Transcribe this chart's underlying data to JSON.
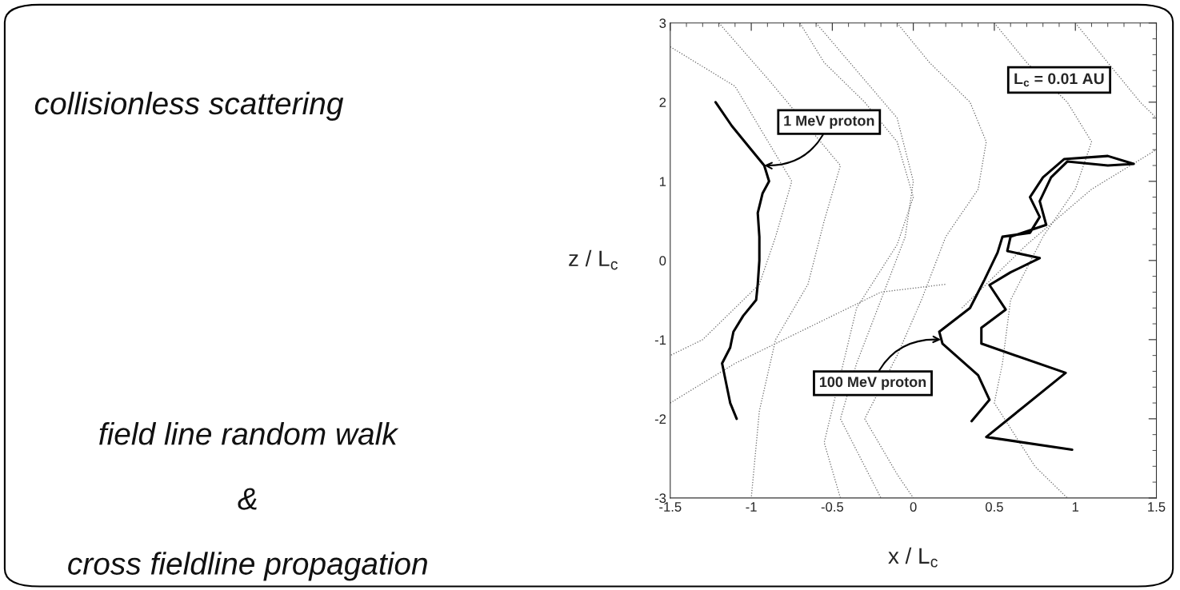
{
  "chart_data": {
    "type": "line",
    "xlabel": "x / L$_{c}$",
    "ylabel": "z / L$_{c}$",
    "xlim": [
      -1.5,
      1.5
    ],
    "ylim": [
      -3,
      3
    ],
    "xticks": [
      -1.5,
      -1,
      -0.5,
      0,
      0.5,
      1,
      1.5
    ],
    "yticks": [
      -3,
      -2,
      -1,
      0,
      1,
      2,
      3
    ],
    "grid": false,
    "legend": false,
    "series": [
      {
        "color": "#666666",
        "line_style": "dotted",
        "x": [
          -1.5,
          -1.1,
          -0.8,
          -0.75,
          -0.85,
          -0.95,
          -1.3,
          -1.5
        ],
        "values": [
          2.7,
          2.2,
          null,
          1.0,
          0.3,
          -0.3,
          -1.0,
          -1.2
        ]
      },
      {
        "color": "#666666",
        "line_style": "dotted",
        "x": [
          -1.2,
          -0.9,
          -0.6,
          -0.45,
          -0.55,
          -0.65,
          -0.85,
          -0.95,
          -1.0
        ],
        "values": [
          3,
          2.3,
          null,
          1.2,
          0.5,
          -0.3,
          -1.0,
          -1.9,
          -3
        ]
      },
      {
        "color": "#666666",
        "line_style": "dotted",
        "x": [
          -0.7,
          -0.55,
          -0.3,
          -0.1,
          0.0,
          -0.1,
          -0.35,
          -0.5,
          -0.55,
          -0.45
        ],
        "values": [
          3,
          2.5,
          2.0,
          1.5,
          0.8,
          0.2,
          -0.6,
          null,
          -2.3,
          -3
        ]
      },
      {
        "color": "#666666",
        "line_style": "dotted",
        "x": [
          -0.6,
          -0.35,
          -0.1,
          0.0,
          -0.05,
          -0.2,
          -0.35,
          -0.45,
          -0.3,
          -0.2
        ],
        "values": [
          3,
          2.4,
          1.8,
          1.0,
          0.3,
          -0.5,
          -1.3,
          -2.0,
          -2.6,
          -3
        ]
      },
      {
        "color": "#666666",
        "line_style": "dotted",
        "x": [
          -0.1,
          0.1,
          0.35,
          0.45,
          0.4,
          0.2,
          0.05,
          -0.1,
          -0.3,
          -0.1,
          0.0
        ],
        "values": [
          3,
          2.5,
          2.0,
          1.5,
          0.9,
          0.3,
          -0.5,
          -1.2,
          -2.0,
          -2.7,
          -3
        ]
      },
      {
        "color": "#666666",
        "line_style": "dotted",
        "x": [
          0.5,
          0.7,
          0.95,
          1.1,
          1.0,
          0.8,
          0.6,
          0.55,
          0.5,
          0.75,
          0.95
        ],
        "values": [
          3,
          2.5,
          2.0,
          1.5,
          0.9,
          0.3,
          -0.5,
          -1.3,
          -1.8,
          -2.6,
          -3
        ]
      },
      {
        "color": "#666666",
        "line_style": "dotted",
        "x": [
          1.0,
          1.2,
          1.4,
          1.5
        ],
        "values": [
          3,
          2.5,
          2.0,
          1.8
        ]
      },
      {
        "color": "#666666",
        "line_style": "dotted",
        "x": [
          0.3,
          0.7,
          1.1,
          1.5
        ],
        "values": [
          -0.6,
          0.2,
          0.9,
          1.4
        ]
      },
      {
        "color": "#666666",
        "line_style": "dotted",
        "x": [
          -1.5,
          -1.1,
          -0.6,
          -0.2,
          0.2
        ],
        "values": [
          -1.8,
          -1.3,
          -0.8,
          -0.4,
          -0.3
        ]
      },
      {
        "color": "#000000",
        "line_style": "solid",
        "x": [
          -1.22,
          -1.12,
          -1.0,
          -0.92,
          -0.89,
          -0.93,
          -0.96,
          -0.95,
          -0.95,
          -0.96,
          -0.97,
          -1.05,
          -1.11,
          -1.13,
          -1.18,
          -1.15,
          -1.13,
          -1.09
        ],
        "values": [
          2.0,
          1.7,
          1.4,
          1.2,
          1.0,
          0.85,
          0.6,
          0.3,
          0,
          -0.3,
          -0.5,
          -0.7,
          -0.9,
          -1.1,
          -1.3,
          -1.6,
          -1.8,
          -2.0
        ]
      },
      {
        "color": "#000000",
        "line_style": "solid",
        "x": [
          0.36,
          0.47,
          0.4,
          0.18,
          0.16,
          0.35,
          0.44,
          0.52,
          0.55,
          0.72,
          0.78,
          0.72,
          0.8,
          0.93,
          1.2,
          1.36,
          1.2,
          0.95,
          0.85,
          0.78,
          0.82,
          0.6,
          0.58,
          0.78,
          0.6,
          0.47,
          0.57,
          0.42,
          0.42,
          0.94,
          0.45,
          0.98
        ],
        "values": [
          -2.03,
          -1.76,
          -1.45,
          -1.05,
          -0.9,
          -0.6,
          -0.24,
          0.1,
          0.3,
          0.35,
          0.55,
          0.8,
          1.05,
          1.28,
          1.32,
          1.22,
          1.2,
          1.25,
          1.05,
          0.75,
          0.45,
          0.3,
          0.12,
          0.03,
          -0.15,
          -0.31,
          -0.62,
          -0.85,
          -1.05,
          -1.42,
          -2.23,
          -2.39
        ]
      }
    ],
    "annotations": [
      {
        "text": "1 MeV proton",
        "x": -0.92,
        "y": 1.2
      },
      {
        "text": "100 MeV proton",
        "x": 0.17,
        "y": -1.0
      },
      "L$_{c}$ = 0.01 AU",
      "collisionless scattering",
      "field line random walk",
      "&",
      "cross fieldline propagation"
    ]
  }
}
